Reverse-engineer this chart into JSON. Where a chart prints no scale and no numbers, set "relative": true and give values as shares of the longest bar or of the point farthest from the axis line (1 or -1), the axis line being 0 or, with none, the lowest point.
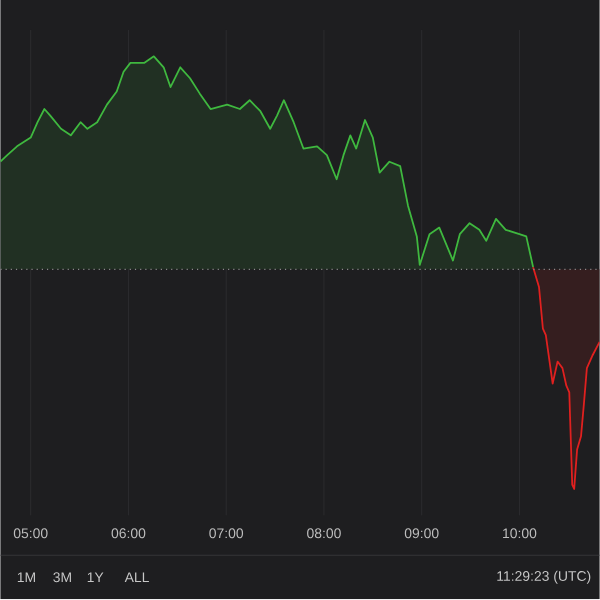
{
  "chart_data": {
    "type": "area",
    "relative": true,
    "xlim": [
      4.69,
      10.82
    ],
    "xticks": [
      {
        "value": 5,
        "label": "05:00"
      },
      {
        "value": 6,
        "label": "06:00"
      },
      {
        "value": 7,
        "label": "07:00"
      },
      {
        "value": 8,
        "label": "08:00"
      },
      {
        "value": 9,
        "label": "09:00"
      },
      {
        "value": 10,
        "label": "10:00"
      }
    ],
    "tick_labels": "x",
    "grid": "x",
    "marker": "none",
    "line_style": "solid",
    "series": [
      {
        "color": "#3fb83f",
        "x": [
          4.69,
          4.76,
          4.86,
          5.0,
          5.07,
          5.14,
          5.2,
          5.31,
          5.41,
          5.51,
          5.58,
          5.68,
          5.78,
          5.88,
          5.95,
          6.02,
          6.16,
          6.26,
          6.36,
          6.43,
          6.53,
          6.63,
          6.73,
          6.84,
          7.01,
          7.14,
          7.24,
          7.35,
          7.45,
          7.52,
          7.59,
          7.69,
          7.79,
          7.93,
          8.03,
          8.13,
          8.2,
          8.27,
          8.33,
          8.42,
          8.5,
          8.57,
          8.67,
          8.78,
          8.86,
          8.95,
          8.98,
          9.08,
          9.18,
          9.32,
          9.39,
          9.49,
          9.59,
          9.66,
          9.76,
          9.86,
          10.0,
          10.07,
          10.14
        ],
        "values": [
          0.49,
          0.52,
          0.56,
          0.6,
          0.67,
          0.73,
          0.7,
          0.64,
          0.61,
          0.67,
          0.64,
          0.67,
          0.75,
          0.81,
          0.9,
          0.94,
          0.94,
          0.97,
          0.92,
          0.83,
          0.92,
          0.87,
          0.8,
          0.73,
          0.75,
          0.73,
          0.77,
          0.72,
          0.64,
          0.7,
          0.77,
          0.67,
          0.55,
          0.56,
          0.52,
          0.41,
          0.52,
          0.61,
          0.55,
          0.68,
          0.6,
          0.44,
          0.49,
          0.47,
          0.29,
          0.15,
          0.02,
          0.16,
          0.19,
          0.04,
          0.16,
          0.21,
          0.18,
          0.13,
          0.23,
          0.18,
          0.16,
          0.15,
          0.01
        ]
      },
      {
        "color": "#e0201f",
        "x": [
          10.14,
          10.2,
          10.24,
          10.27,
          10.34,
          10.39,
          10.44,
          10.48,
          10.51,
          10.54,
          10.56,
          10.59,
          10.63,
          10.66,
          10.69,
          10.75,
          10.82
        ],
        "values": [
          0.01,
          -0.08,
          -0.27,
          -0.3,
          -0.52,
          -0.42,
          -0.45,
          -0.53,
          -0.56,
          -0.98,
          -1.0,
          -0.82,
          -0.76,
          -0.61,
          -0.45,
          -0.39,
          -0.33
        ]
      }
    ],
    "ref_lines": [
      {
        "axis": "y",
        "value": 0,
        "color": "#8a8a8a",
        "line_style": "dotted"
      }
    ],
    "annotations": [
      "1M",
      "3M",
      "1Y",
      "ALL",
      "11:29:23 (UTC)"
    ]
  }
}
